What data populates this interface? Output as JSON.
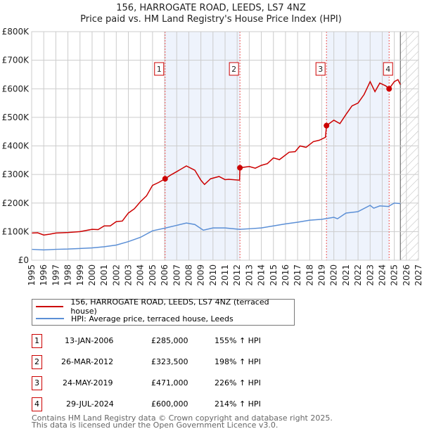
{
  "title": "156, HARROGATE ROAD, LEEDS, LS7 4NZ",
  "subtitle": "Price paid vs. HM Land Registry's House Price Index (HPI)",
  "chart_data": {
    "type": "line",
    "ylim": [
      0,
      800000
    ],
    "xlim": [
      1995,
      2027
    ],
    "yticks": [
      {
        "v": 0,
        "label": "£0"
      },
      {
        "v": 100000,
        "label": "£100K"
      },
      {
        "v": 200000,
        "label": "£200K"
      },
      {
        "v": 300000,
        "label": "£300K"
      },
      {
        "v": 400000,
        "label": "£400K"
      },
      {
        "v": 500000,
        "label": "£500K"
      },
      {
        "v": 600000,
        "label": "£600K"
      },
      {
        "v": 700000,
        "label": "£700K"
      },
      {
        "v": 800000,
        "label": "£800K"
      }
    ],
    "xticks": [
      "1995",
      "1996",
      "1997",
      "1998",
      "1999",
      "2000",
      "2001",
      "2002",
      "2003",
      "2004",
      "2005",
      "2006",
      "2007",
      "2008",
      "2009",
      "2010",
      "2011",
      "2012",
      "2013",
      "2014",
      "2015",
      "2016",
      "2017",
      "2018",
      "2019",
      "2020",
      "2021",
      "2022",
      "2023",
      "2024",
      "2025",
      "2026",
      "2027"
    ],
    "forecast_start": 2025.5,
    "series": [
      {
        "name": "156, HARROGATE ROAD, LEEDS, LS7 4NZ (terraced house)",
        "color": "#cc0000",
        "x": [
          1995,
          1995.5,
          1996,
          1996.5,
          1997,
          1998,
          1999,
          2000,
          2000.5,
          2001,
          2001.5,
          2002,
          2002.5,
          2003,
          2003.5,
          2004,
          2004.5,
          2005,
          2005.5,
          2006.04,
          2006.5,
          2007,
          2007.8,
          2008.5,
          2009,
          2009.3,
          2009.8,
          2010.5,
          2011,
          2011.3,
          2012.2,
          2012.23,
          2013,
          2013.5,
          2014,
          2014.5,
          2015,
          2015.5,
          2016.3,
          2016.8,
          2017.2,
          2017.7,
          2018.3,
          2018.8,
          2019.3,
          2019.39,
          2020,
          2020.5,
          2021,
          2021.5,
          2022,
          2022.5,
          2023,
          2023.4,
          2023.8,
          2024.3,
          2024.57,
          2025,
          2025.3,
          2025.5
        ],
        "y": [
          95000,
          96000,
          88000,
          91000,
          95000,
          97000,
          100000,
          108000,
          107000,
          120000,
          120000,
          135000,
          137000,
          165000,
          180000,
          205000,
          225000,
          262000,
          272000,
          285000,
          298000,
          310000,
          330000,
          315000,
          280000,
          265000,
          285000,
          293000,
          282000,
          283000,
          280000,
          323500,
          328000,
          322000,
          332000,
          338000,
          358000,
          352000,
          378000,
          380000,
          400000,
          395000,
          415000,
          420000,
          430000,
          471000,
          490000,
          478000,
          510000,
          540000,
          550000,
          580000,
          625000,
          590000,
          620000,
          610000,
          600000,
          625000,
          632000,
          615000
        ]
      },
      {
        "name": "HPI: Average price, terraced house, Leeds",
        "color": "#5b8fd6",
        "x": [
          1995,
          1996,
          1997,
          1998,
          1999,
          2000,
          2001,
          2002,
          2003,
          2004,
          2005,
          2006,
          2007,
          2007.8,
          2008.5,
          2009.2,
          2010,
          2011,
          2012.2,
          2013,
          2014,
          2015,
          2016,
          2017,
          2018,
          2019,
          2020,
          2020.3,
          2021,
          2022,
          2023,
          2023.3,
          2023.8,
          2024.5,
          2025,
          2025.5
        ],
        "y": [
          38000,
          36000,
          38000,
          39000,
          41000,
          43000,
          47000,
          53000,
          65000,
          80000,
          103000,
          112000,
          122000,
          130000,
          125000,
          105000,
          113000,
          113000,
          108000,
          110000,
          113000,
          120000,
          127000,
          133000,
          140000,
          143000,
          150000,
          145000,
          165000,
          170000,
          192000,
          182000,
          190000,
          188000,
          200000,
          198000
        ]
      }
    ],
    "sales": [
      {
        "label": "1",
        "x": 2006.04,
        "y": 285000,
        "date": "13-JAN-2006",
        "price": "£285,000",
        "hpi": "155% ↑ HPI"
      },
      {
        "label": "2",
        "x": 2012.23,
        "y": 323500,
        "date": "26-MAR-2012",
        "price": "£323,500",
        "hpi": "198% ↑ HPI"
      },
      {
        "label": "3",
        "x": 2019.39,
        "y": 471000,
        "date": "24-MAY-2019",
        "price": "£471,000",
        "hpi": "226% ↑ HPI"
      },
      {
        "label": "4",
        "x": 2024.57,
        "y": 600000,
        "date": "29-JUL-2024",
        "price": "£600,000",
        "hpi": "214% ↑ HPI"
      }
    ]
  },
  "footer": [
    "Contains HM Land Registry data © Crown copyright and database right 2025.",
    "This data is licensed under the Open Government Licence v3.0."
  ]
}
